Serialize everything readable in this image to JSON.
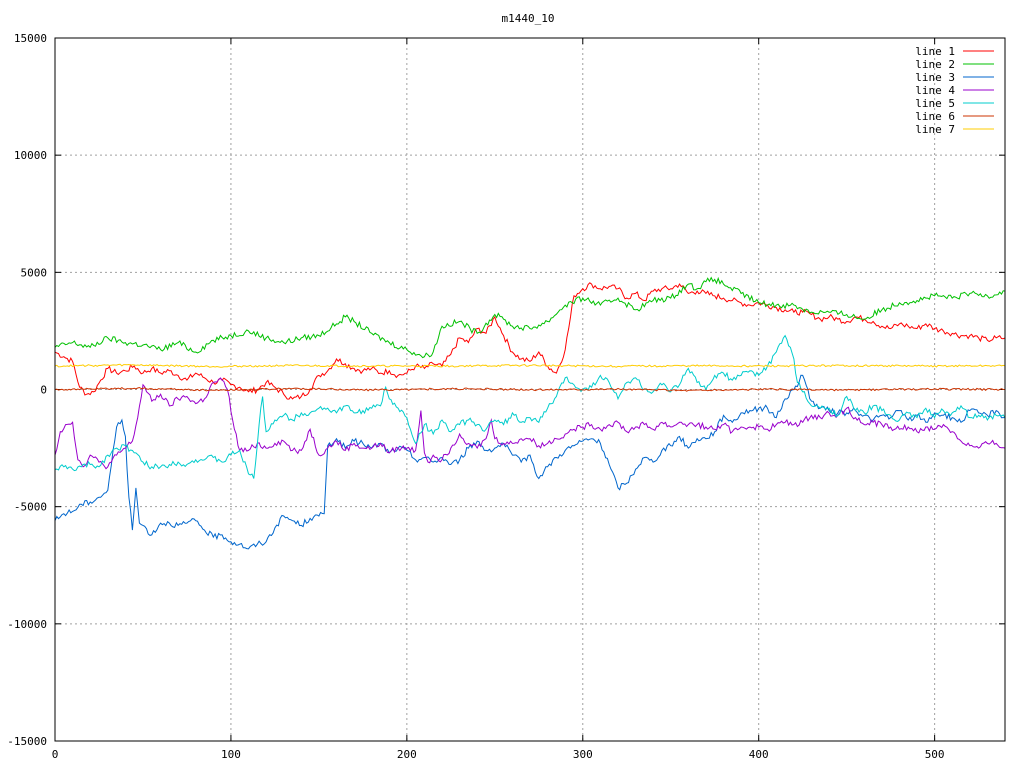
{
  "chart_data": {
    "type": "line",
    "title": "m1440_10",
    "xlabel": "",
    "ylabel": "",
    "xlim": [
      0,
      540
    ],
    "ylim": [
      -15000,
      15000
    ],
    "xticks": [
      0,
      100,
      200,
      300,
      400,
      500
    ],
    "yticks": [
      -15000,
      -10000,
      -5000,
      0,
      5000,
      10000,
      15000
    ],
    "grid": true,
    "legend_position": "top-right",
    "series": [
      {
        "name": "line 1",
        "color": "#ff0000",
        "x": [
          0,
          5,
          10,
          14,
          18,
          22,
          26,
          30,
          35,
          40,
          45,
          50,
          55,
          60,
          65,
          70,
          75,
          80,
          85,
          90,
          95,
          100,
          105,
          110,
          115,
          120,
          125,
          130,
          135,
          140,
          145,
          150,
          155,
          160,
          165,
          170,
          175,
          180,
          185,
          190,
          195,
          200,
          205,
          210,
          215,
          220,
          225,
          230,
          235,
          240,
          245,
          250,
          255,
          260,
          265,
          270,
          275,
          280,
          285,
          290,
          295,
          300,
          305,
          310,
          315,
          320,
          325,
          330,
          335,
          340,
          345,
          350,
          355,
          360,
          365,
          370,
          375,
          380,
          385,
          390,
          395,
          400,
          405,
          410,
          415,
          420,
          425,
          430,
          435,
          440,
          445,
          450,
          455,
          460,
          465,
          470,
          475,
          480,
          485,
          490,
          495,
          500,
          505,
          510,
          515,
          520,
          525,
          530,
          535,
          540
        ],
        "y": [
          1600,
          1400,
          1200,
          100,
          -200,
          -100,
          400,
          900,
          700,
          800,
          1000,
          700,
          900,
          700,
          800,
          600,
          400,
          700,
          500,
          300,
          400,
          200,
          100,
          -100,
          0,
          300,
          100,
          -200,
          -400,
          -300,
          0,
          600,
          800,
          1300,
          1100,
          900,
          800,
          900,
          700,
          800,
          600,
          700,
          1000,
          900,
          1100,
          1000,
          1500,
          2200,
          2000,
          2600,
          2400,
          3100,
          2300,
          1600,
          1300,
          1200,
          1600,
          1000,
          700,
          1700,
          4000,
          4300,
          4500,
          4300,
          4400,
          4300,
          3900,
          4100,
          3800,
          4200,
          4300,
          4300,
          4500,
          4100,
          4200,
          4100,
          4000,
          3900,
          3800,
          3700,
          3600,
          3700,
          3600,
          3500,
          3400,
          3300,
          3300,
          3200,
          3000,
          3100,
          3000,
          2900,
          3100,
          3000,
          2900,
          2700,
          2600,
          2800,
          2700,
          2600,
          2800,
          2600,
          2500,
          2400,
          2300,
          2300,
          2200,
          2100,
          2200,
          2200
        ]
      },
      {
        "name": "line 2",
        "color": "#00c000",
        "x": [
          0,
          10,
          20,
          30,
          40,
          50,
          60,
          70,
          80,
          90,
          100,
          110,
          120,
          130,
          140,
          150,
          160,
          165,
          170,
          180,
          190,
          200,
          210,
          215,
          220,
          230,
          240,
          250,
          255,
          260,
          270,
          280,
          290,
          300,
          310,
          320,
          330,
          340,
          350,
          360,
          365,
          370,
          375,
          380,
          390,
          400,
          410,
          420,
          430,
          440,
          450,
          460,
          470,
          480,
          490,
          500,
          510,
          520,
          530,
          540
        ],
        "y": [
          1800,
          2000,
          1800,
          2200,
          2000,
          1900,
          1700,
          2000,
          1600,
          2100,
          2300,
          2500,
          2200,
          2000,
          2200,
          2300,
          2800,
          3100,
          2900,
          2400,
          2000,
          1700,
          1400,
          1600,
          2700,
          2900,
          2400,
          3200,
          3000,
          2700,
          2600,
          2900,
          3600,
          3900,
          3600,
          3900,
          3400,
          3800,
          3900,
          4500,
          4300,
          4600,
          4700,
          4500,
          4100,
          3700,
          3600,
          3600,
          3300,
          3300,
          3200,
          3000,
          3400,
          3700,
          3800,
          4000,
          3900,
          4100,
          4000,
          4200
        ]
      },
      {
        "name": "line 3",
        "color": "#0066cc",
        "x": [
          0,
          5,
          10,
          15,
          20,
          25,
          30,
          35,
          38,
          40,
          42,
          44,
          46,
          48,
          50,
          55,
          60,
          65,
          70,
          75,
          80,
          85,
          90,
          95,
          100,
          105,
          110,
          115,
          120,
          125,
          130,
          135,
          140,
          145,
          150,
          153,
          155,
          160,
          165,
          170,
          175,
          180,
          185,
          190,
          195,
          200,
          205,
          210,
          215,
          220,
          225,
          230,
          235,
          240,
          245,
          250,
          255,
          260,
          265,
          270,
          275,
          280,
          285,
          290,
          295,
          300,
          305,
          310,
          315,
          320,
          325,
          330,
          335,
          340,
          345,
          350,
          355,
          360,
          365,
          370,
          375,
          380,
          385,
          390,
          395,
          400,
          405,
          410,
          415,
          420,
          425,
          430,
          435,
          440,
          445,
          450,
          455,
          460,
          465,
          470,
          475,
          480,
          485,
          490,
          495,
          500,
          505,
          510,
          515,
          520,
          525,
          530,
          535,
          540
        ],
        "y": [
          -5600,
          -5300,
          -5200,
          -4900,
          -4800,
          -4600,
          -4300,
          -1600,
          -1300,
          -2000,
          -4600,
          -6000,
          -4200,
          -5700,
          -5800,
          -6200,
          -5700,
          -5700,
          -5800,
          -5700,
          -5600,
          -6000,
          -6300,
          -6200,
          -6500,
          -6600,
          -6800,
          -6600,
          -6500,
          -5900,
          -5400,
          -5600,
          -5800,
          -5500,
          -5400,
          -5300,
          -2400,
          -2100,
          -2500,
          -2200,
          -2300,
          -2500,
          -2300,
          -2700,
          -2500,
          -2600,
          -3000,
          -2900,
          -3100,
          -2900,
          -3200,
          -3000,
          -2500,
          -2200,
          -2600,
          -2500,
          -2300,
          -2800,
          -3100,
          -2800,
          -3800,
          -3300,
          -2900,
          -2600,
          -2400,
          -2200,
          -2100,
          -2300,
          -3200,
          -4200,
          -4000,
          -3400,
          -2900,
          -3100,
          -2600,
          -2400,
          -2000,
          -2500,
          -2100,
          -2100,
          -1800,
          -1100,
          -1400,
          -1000,
          -900,
          -800,
          -800,
          -1200,
          -400,
          0,
          600,
          -500,
          -800,
          -900,
          -1000,
          -1000,
          -900,
          -1100,
          -1300,
          -1100,
          -1200,
          -900,
          -1300,
          -1100,
          -1400,
          -1000,
          -1100,
          -1200,
          -1400,
          -900,
          -1000,
          -1100,
          -900,
          -1200
        ]
      },
      {
        "name": "line 4",
        "color": "#9900cc",
        "x": [
          0,
          3,
          6,
          10,
          13,
          16,
          20,
          25,
          30,
          35,
          40,
          44,
          47,
          50,
          55,
          60,
          65,
          70,
          75,
          80,
          85,
          90,
          95,
          98,
          102,
          105,
          110,
          115,
          120,
          125,
          130,
          135,
          140,
          145,
          150,
          155,
          160,
          165,
          170,
          175,
          180,
          185,
          190,
          195,
          200,
          205,
          208,
          210,
          212,
          215,
          220,
          225,
          230,
          235,
          240,
          245,
          248,
          250,
          255,
          260,
          265,
          270,
          275,
          280,
          285,
          290,
          295,
          300,
          305,
          310,
          315,
          320,
          325,
          330,
          335,
          340,
          345,
          350,
          355,
          360,
          365,
          370,
          375,
          380,
          385,
          390,
          395,
          400,
          405,
          410,
          415,
          420,
          425,
          430,
          435,
          440,
          445,
          450,
          455,
          460,
          465,
          470,
          475,
          480,
          485,
          490,
          495,
          500,
          505,
          510,
          515,
          520,
          525,
          530,
          535,
          540
        ],
        "y": [
          -2800,
          -1800,
          -1500,
          -1400,
          -3000,
          -3300,
          -2800,
          -3100,
          -3300,
          -2800,
          -2500,
          -2200,
          -1200,
          200,
          -500,
          -200,
          -700,
          -400,
          -300,
          -600,
          -400,
          300,
          400,
          0,
          -1700,
          -2600,
          -2600,
          -2300,
          -2500,
          -2300,
          -2200,
          -2600,
          -2600,
          -1700,
          -2800,
          -2500,
          -2200,
          -2600,
          -2300,
          -2500,
          -2500,
          -2300,
          -2700,
          -2500,
          -2500,
          -2600,
          -900,
          -2700,
          -3100,
          -2800,
          -3000,
          -2500,
          -1900,
          -2300,
          -2500,
          -2100,
          -1300,
          -2100,
          -2300,
          -2300,
          -2100,
          -2100,
          -2400,
          -2300,
          -2100,
          -1900,
          -1700,
          -1600,
          -1500,
          -1700,
          -1500,
          -1400,
          -1800,
          -1600,
          -1500,
          -1700,
          -1400,
          -1600,
          -1400,
          -1500,
          -1500,
          -1600,
          -1700,
          -1500,
          -1800,
          -1600,
          -1600,
          -1600,
          -1700,
          -1500,
          -1400,
          -1500,
          -1400,
          -1100,
          -1200,
          -1000,
          -1100,
          -800,
          -1200,
          -1500,
          -1400,
          -1500,
          -1600,
          -1700,
          -1600,
          -1800,
          -1600,
          -1700,
          -1500,
          -1800,
          -2200,
          -2400,
          -2500,
          -2300,
          -2300,
          -2500
        ]
      },
      {
        "name": "line 5",
        "color": "#00cccc",
        "x": [
          0,
          5,
          10,
          15,
          20,
          25,
          30,
          35,
          40,
          45,
          50,
          55,
          60,
          65,
          70,
          75,
          80,
          85,
          90,
          95,
          100,
          105,
          110,
          113,
          116,
          118,
          120,
          125,
          130,
          135,
          140,
          145,
          150,
          155,
          160,
          165,
          170,
          175,
          180,
          185,
          188,
          190,
          195,
          200,
          205,
          210,
          215,
          220,
          225,
          230,
          235,
          240,
          245,
          250,
          255,
          260,
          265,
          270,
          275,
          280,
          285,
          290,
          295,
          300,
          305,
          310,
          315,
          320,
          325,
          330,
          335,
          340,
          345,
          350,
          355,
          360,
          365,
          370,
          375,
          380,
          385,
          390,
          395,
          400,
          405,
          410,
          415,
          420,
          422,
          425,
          430,
          435,
          440,
          445,
          450,
          455,
          460,
          465,
          470,
          475,
          480,
          485,
          490,
          495,
          500,
          505,
          510,
          515,
          520,
          525,
          530,
          535,
          540
        ],
        "y": [
          -3400,
          -3300,
          -3400,
          -3300,
          -3200,
          -3300,
          -2800,
          -2500,
          -2400,
          -2700,
          -3100,
          -3300,
          -3300,
          -3200,
          -3100,
          -3200,
          -3000,
          -3000,
          -2900,
          -3100,
          -2800,
          -2600,
          -3600,
          -3800,
          -1500,
          -300,
          -1800,
          -1300,
          -1100,
          -1300,
          -1000,
          -1000,
          -800,
          -800,
          -1000,
          -700,
          -1000,
          -900,
          -800,
          -700,
          100,
          -400,
          -800,
          -1200,
          -2300,
          -1500,
          -1900,
          -1300,
          -1800,
          -1500,
          -1300,
          -1500,
          -1700,
          -1300,
          -1500,
          -1000,
          -1400,
          -1200,
          -1400,
          -800,
          -300,
          500,
          200,
          0,
          100,
          600,
          300,
          -400,
          300,
          500,
          0,
          -100,
          200,
          -100,
          200,
          900,
          300,
          0,
          600,
          700,
          400,
          600,
          800,
          600,
          1000,
          1600,
          2300,
          1300,
          300,
          -100,
          -700,
          -800,
          -800,
          -1100,
          -300,
          -900,
          -1000,
          -700,
          -900,
          -1100,
          -1300,
          -1000,
          -1200,
          -800,
          -1200,
          -900,
          -1000,
          -700,
          -1200,
          -1100,
          -1300,
          -1100,
          -1200
        ]
      },
      {
        "name": "line 6",
        "color": "#cc3300",
        "x": [
          0,
          45,
          90,
          135,
          180,
          225,
          270,
          315,
          360,
          405,
          450,
          495,
          540
        ],
        "y": [
          0,
          50,
          -30,
          40,
          -20,
          30,
          -10,
          20,
          -40,
          10,
          -30,
          20,
          0
        ]
      },
      {
        "name": "line 7",
        "color": "#ffcc00",
        "x": [
          0,
          45,
          90,
          135,
          180,
          225,
          270,
          315,
          360,
          405,
          450,
          495,
          540
        ],
        "y": [
          1000,
          1050,
          980,
          1020,
          1000,
          1000,
          1030,
          990,
          1010,
          1000,
          1020,
          1000,
          1010
        ]
      }
    ]
  }
}
